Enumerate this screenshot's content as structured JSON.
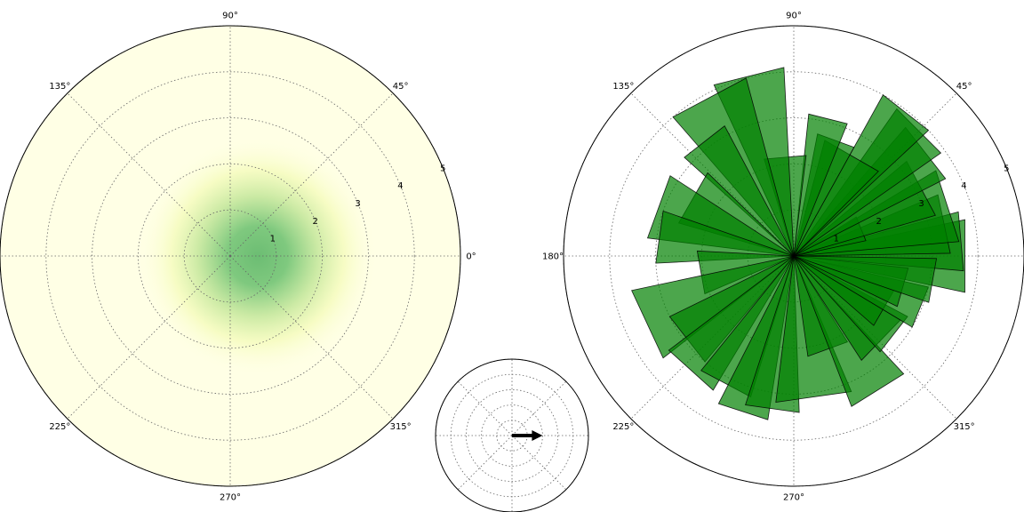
{
  "chart_data": [
    {
      "type": "heatmap",
      "projection": "polar",
      "rlim": [
        0,
        5
      ],
      "r_ticks": [
        "1",
        "2",
        "3",
        "4",
        "5"
      ],
      "theta_ticks": [
        "0°",
        "45°",
        "90°",
        "135°",
        "180°",
        "225°",
        "270°",
        "315°"
      ],
      "colormap": "yellow-green",
      "grid": true,
      "blob_center": {
        "r": 0.6,
        "theta_deg": 0
      },
      "colors": {
        "background": "#ffffe5",
        "mid": "#f3fbb6",
        "high": "#78c679"
      }
    },
    {
      "type": "bar",
      "projection": "polar",
      "rlim": [
        0,
        5
      ],
      "r_ticks": [
        "1",
        "2",
        "3",
        "4",
        "5"
      ],
      "theta_ticks": [
        "0°",
        "45°",
        "90°",
        "135°",
        "180°",
        "225°",
        "270°",
        "315°"
      ],
      "grid": true,
      "color": "#008000",
      "alpha": 0.7,
      "bars": [
        {
          "theta": 0,
          "r": 3.8,
          "width": 24
        },
        {
          "theta": 5,
          "r": 3.7,
          "width": 20
        },
        {
          "theta": 12,
          "r": 3.4,
          "width": 22
        },
        {
          "theta": 18,
          "r": 3.6,
          "width": 26
        },
        {
          "theta": 22,
          "r": 1.6,
          "width": 20
        },
        {
          "theta": 28,
          "r": 3.2,
          "width": 24
        },
        {
          "theta": 38,
          "r": 3.7,
          "width": 22
        },
        {
          "theta": 45,
          "r": 3.9,
          "width": 20
        },
        {
          "theta": 52,
          "r": 4.0,
          "width": 18
        },
        {
          "theta": 60,
          "r": 2.6,
          "width": 30
        },
        {
          "theta": 70,
          "r": 2.7,
          "width": 18
        },
        {
          "theta": 76,
          "r": 3.1,
          "width": 16
        },
        {
          "theta": 95,
          "r": 2.2,
          "width": 24
        },
        {
          "theta": 104,
          "r": 4.1,
          "width": 22
        },
        {
          "theta": 118,
          "r": 4.0,
          "width": 26
        },
        {
          "theta": 128,
          "r": 3.2,
          "width": 20
        },
        {
          "theta": 150,
          "r": 2.6,
          "width": 28
        },
        {
          "theta": 160,
          "r": 3.2,
          "width": 26
        },
        {
          "theta": 172,
          "r": 3.0,
          "width": 22
        },
        {
          "theta": 190,
          "r": 2.1,
          "width": 26
        },
        {
          "theta": 205,
          "r": 3.6,
          "width": 26
        },
        {
          "theta": 218,
          "r": 3.0,
          "width": 24
        },
        {
          "theta": 228,
          "r": 3.4,
          "width": 22
        },
        {
          "theta": 242,
          "r": 3.2,
          "width": 22
        },
        {
          "theta": 252,
          "r": 3.6,
          "width": 18
        },
        {
          "theta": 262,
          "r": 3.4,
          "width": 20
        },
        {
          "theta": 278,
          "r": 3.2,
          "width": 30
        },
        {
          "theta": 290,
          "r": 2.2,
          "width": 24
        },
        {
          "theta": 302,
          "r": 3.5,
          "width": 22
        },
        {
          "theta": 316,
          "r": 2.7,
          "width": 26
        },
        {
          "theta": 322,
          "r": 2.8,
          "width": 20
        },
        {
          "theta": 330,
          "r": 2.3,
          "width": 22
        },
        {
          "theta": 338,
          "r": 3.0,
          "width": 18
        },
        {
          "theta": 344,
          "r": 2.5,
          "width": 20
        },
        {
          "theta": 350,
          "r": 3.1,
          "width": 18
        }
      ]
    },
    {
      "type": "quiver",
      "projection": "polar",
      "grid": true,
      "ring_count": 5,
      "arrow": {
        "theta_deg": 0,
        "length": 2.0,
        "color": "#000000"
      }
    }
  ]
}
